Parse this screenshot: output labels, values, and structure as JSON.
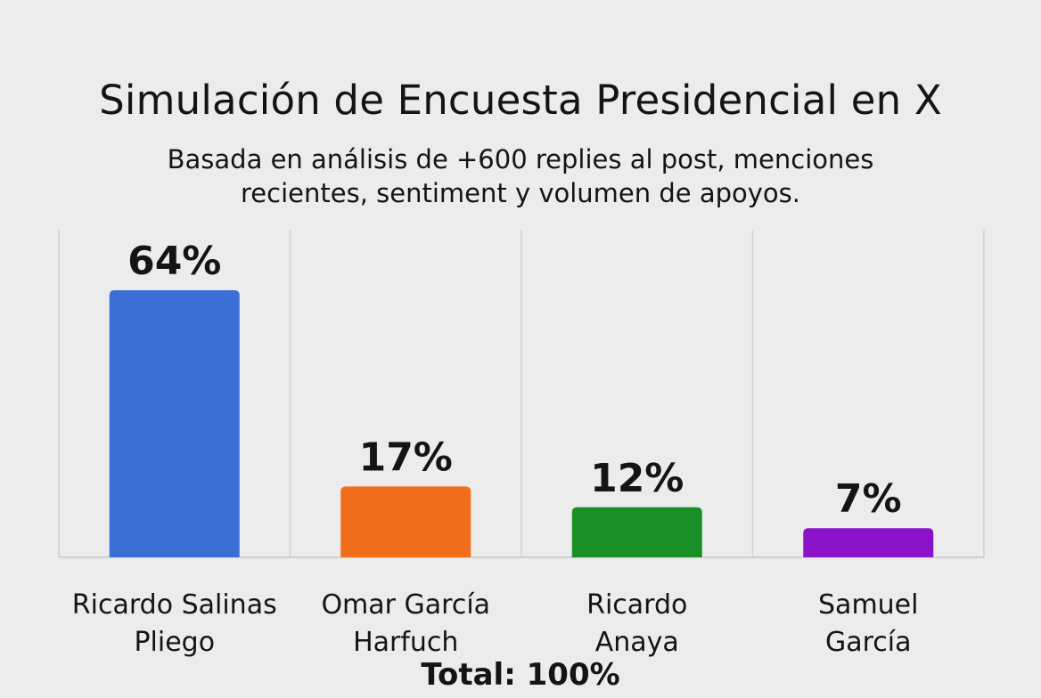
{
  "chart_data": {
    "type": "bar",
    "title": "Simulación de Encuesta Presidencial en X",
    "subtitle_lines": [
      "Basada en análisis de +600 replies al post, menciones",
      "recientes, sentiment y volumen de apoyos."
    ],
    "categories": [
      [
        "Ricardo Salinas",
        "Pliego"
      ],
      [
        "Omar García",
        "Harfuch"
      ],
      [
        "Ricardo",
        "Anaya"
      ],
      [
        "Samuel",
        "García"
      ]
    ],
    "values": [
      64,
      17,
      12,
      7
    ],
    "value_labels": [
      "64%",
      "17%",
      "12%",
      "7%"
    ],
    "colors": [
      "#3c6fd6",
      "#f06e1c",
      "#1b8f27",
      "#8a12c9"
    ],
    "ylim": [
      0,
      64
    ],
    "grid": true,
    "total_label": "Total: 100%"
  }
}
